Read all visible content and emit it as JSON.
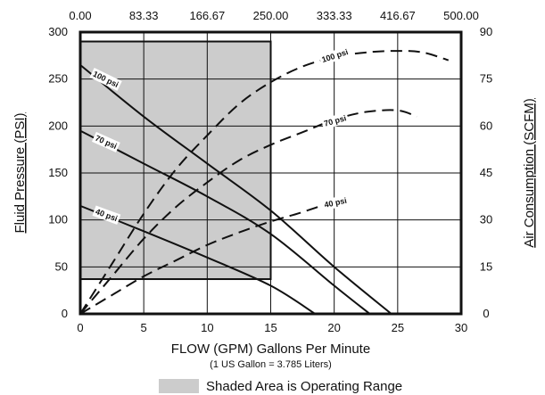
{
  "chart_data": {
    "type": "line",
    "xlabel": "FLOW (GPM) Gallons Per Minute",
    "xlabel_note": "(1 US Gallon = 3.785 Liters)",
    "ylabel_left": "Fluid Pressure (PSI)",
    "ylabel_right": "Air Consumption (SCFM)",
    "x_ticks": [
      "0",
      "5",
      "10",
      "15",
      "20",
      "25",
      "30"
    ],
    "x_ticks_top": [
      "0.00",
      "83.33",
      "166.67",
      "250.00",
      "333.33",
      "416.67",
      "500.00"
    ],
    "y_ticks_left": [
      "0",
      "50",
      "100",
      "150",
      "200",
      "250",
      "300"
    ],
    "y_ticks_right": [
      "0",
      "15",
      "30",
      "45",
      "60",
      "75",
      "90"
    ],
    "xlim": [
      0,
      30
    ],
    "ylim_left": [
      0,
      300
    ],
    "ylim_right": [
      0,
      90
    ],
    "grid": true,
    "operating_range": {
      "x": [
        0,
        15
      ],
      "y": [
        37,
        290
      ],
      "label": "Shaded Area is Operating Range",
      "color": "#cccccc"
    },
    "series": [
      {
        "name": "100 psi",
        "kind": "fluid_pressure",
        "axis": "left",
        "style": "solid",
        "x": [
          0,
          5,
          10,
          15,
          20,
          24.5
        ],
        "y": [
          265,
          210,
          160,
          110,
          50,
          0
        ]
      },
      {
        "name": "70 psi",
        "kind": "fluid_pressure",
        "axis": "left",
        "style": "solid",
        "x": [
          0,
          5,
          10,
          15,
          20,
          22.8
        ],
        "y": [
          195,
          160,
          125,
          85,
          30,
          0
        ]
      },
      {
        "name": "40 psi",
        "kind": "fluid_pressure",
        "axis": "left",
        "style": "solid",
        "x": [
          0,
          5,
          10,
          15,
          18.5
        ],
        "y": [
          115,
          88,
          60,
          30,
          0
        ]
      },
      {
        "name": "100 psi",
        "kind": "air_consumption",
        "axis": "right",
        "style": "dashed",
        "x": [
          0,
          2.5,
          5,
          7.5,
          10,
          12.5,
          15,
          17.5,
          20,
          22.5,
          25,
          27,
          29
        ],
        "y": [
          0,
          16,
          32,
          46,
          57,
          67,
          74,
          79,
          82,
          83.5,
          84,
          83.5,
          81
        ]
      },
      {
        "name": "70 psi",
        "kind": "air_consumption",
        "axis": "right",
        "style": "dashed",
        "x": [
          0,
          2.5,
          5,
          7.5,
          10,
          12.5,
          15,
          17.5,
          20,
          22.5,
          25,
          26.5
        ],
        "y": [
          0,
          12,
          24,
          34,
          42,
          49,
          54,
          58,
          62,
          64.5,
          65,
          63
        ]
      },
      {
        "name": "40 psi",
        "kind": "air_consumption",
        "axis": "right",
        "style": "dashed",
        "x": [
          0,
          2.5,
          5,
          7.5,
          10,
          12.5,
          15,
          17.5,
          20
        ],
        "y": [
          0,
          6,
          12,
          17,
          22,
          26,
          29.5,
          32.5,
          36
        ]
      }
    ],
    "curve_labels": [
      "100 psi",
      "70 psi",
      "40 psi",
      "100 psi",
      "70 psi",
      "40 psi"
    ]
  }
}
